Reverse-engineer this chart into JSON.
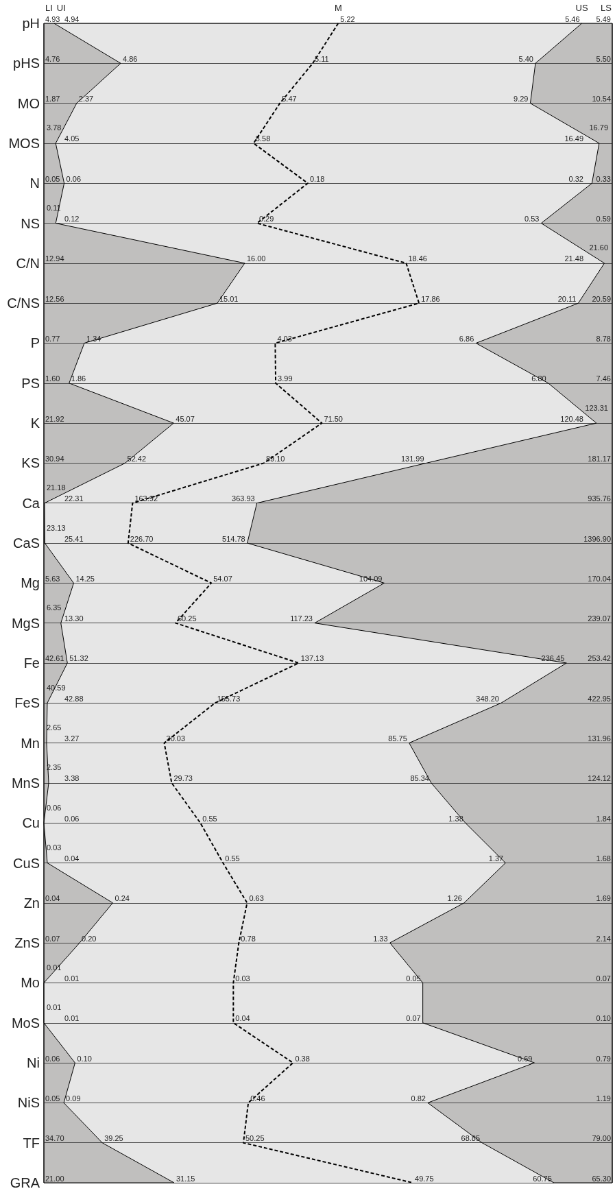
{
  "chart_data": {
    "type": "other",
    "categories": [
      "pH",
      "pHS",
      "MO",
      "MOS",
      "N",
      "NS",
      "C/N",
      "C/NS",
      "P",
      "PS",
      "K",
      "KS",
      "Ca",
      "CaS",
      "Mg",
      "MgS",
      "Fe",
      "FeS",
      "Mn",
      "MnS",
      "Cu",
      "CuS",
      "Zn",
      "ZnS",
      "Mo",
      "MoS",
      "Ni",
      "NiS",
      "TF",
      "GRA"
    ],
    "series": [
      {
        "name": "LI",
        "color": "#000000",
        "values": [
          4.93,
          4.76,
          1.87,
          3.78,
          0.05,
          0.11,
          12.94,
          12.56,
          0.77,
          1.6,
          21.92,
          30.94,
          21.18,
          23.13,
          5.63,
          6.35,
          42.61,
          40.59,
          2.65,
          2.35,
          0.06,
          0.03,
          0.04,
          0.07,
          0.01,
          0.01,
          0.06,
          0.05,
          34.7,
          21.0
        ],
        "value_labels": [
          "4.93",
          "4.76",
          "1.87",
          "3.78",
          "0.05",
          "0.11",
          "12.94",
          "12.56",
          "0.77",
          "1.60",
          "21.92",
          "30.94",
          "21.18",
          "23.13",
          "5.63",
          "6.35",
          "42.61",
          "40.59",
          "2.65",
          "2.35",
          "0.06",
          "0.03",
          "0.04",
          "0.07",
          "0.01",
          "0.01",
          "0.06",
          "0.05",
          "34.70",
          "21.00"
        ]
      },
      {
        "name": "UI",
        "color": "#000000",
        "values": [
          4.94,
          4.86,
          2.37,
          4.05,
          0.06,
          0.12,
          16.0,
          15.01,
          1.34,
          1.86,
          45.07,
          52.42,
          22.31,
          25.41,
          14.25,
          13.3,
          51.32,
          42.88,
          3.27,
          3.38,
          0.06,
          0.04,
          0.24,
          0.2,
          0.01,
          0.01,
          0.1,
          0.09,
          39.25,
          31.15
        ],
        "value_labels": [
          "4.94",
          "4.86",
          "2.37",
          "4.05",
          "0.06",
          "0.12",
          "16.00",
          "15.01",
          "1.34",
          "1.86",
          "45.07",
          "52.42",
          "22.31",
          "25.41",
          "14.25",
          "13.30",
          "51.32",
          "42.88",
          "3.27",
          "3.38",
          "0.06",
          "0.04",
          "0.24",
          "0.20",
          "0.01",
          "0.01",
          "0.10",
          "0.09",
          "39.25",
          "31.15"
        ]
      },
      {
        "name": "M",
        "color": "#000000",
        "values": [
          5.22,
          5.11,
          5.47,
          8.58,
          0.18,
          0.29,
          18.46,
          17.86,
          4.03,
          3.99,
          71.5,
          89.1,
          163.92,
          226.7,
          54.07,
          60.25,
          137.13,
          155.73,
          30.03,
          29.73,
          0.55,
          0.55,
          0.63,
          0.78,
          0.03,
          0.04,
          0.38,
          0.46,
          50.25,
          49.75
        ],
        "value_labels": [
          "5.22",
          "5.11",
          "5.47",
          "8.58",
          "0.18",
          "0.29",
          "18.46",
          "17.86",
          "4.03",
          "3.99",
          "71.50",
          "89.10",
          "163.92",
          "226.70",
          "54.07",
          "60.25",
          "137.13",
          "155.73",
          "30.03",
          "29.73",
          "0.55",
          "0.55",
          "0.63",
          "0.78",
          "0.03",
          "0.04",
          "0.38",
          "0.46",
          "50.25",
          "49.75"
        ]
      },
      {
        "name": "US",
        "color": "#000000",
        "values": [
          5.46,
          5.4,
          9.29,
          16.49,
          0.32,
          0.53,
          21.48,
          20.11,
          6.86,
          6.8,
          120.48,
          131.99,
          363.93,
          514.78,
          104.09,
          117.23,
          236.45,
          348.2,
          85.75,
          85.34,
          1.38,
          1.37,
          1.26,
          1.33,
          0.05,
          0.07,
          0.69,
          0.82,
          68.85,
          60.75
        ],
        "value_labels": [
          "5.46",
          "5.40",
          "9.29",
          "16.49",
          "0.32",
          "0.53",
          "21.48",
          "20.11",
          "6.86",
          "6.80",
          "120.48",
          "131.99",
          "363.93",
          "514.78",
          "104.09",
          "117.23",
          "236.45",
          "348.20",
          "85.75",
          "85.34",
          "1.38",
          "1.37",
          "1.26",
          "1.33",
          "0.05",
          "0.07",
          "0.69",
          "0.82",
          "68.85",
          "60.75"
        ]
      },
      {
        "name": "LS",
        "color": "#000000",
        "values": [
          5.49,
          5.5,
          10.54,
          16.79,
          0.33,
          0.59,
          21.6,
          20.59,
          8.78,
          7.46,
          123.31,
          181.17,
          935.76,
          1396.9,
          170.04,
          239.07,
          253.42,
          422.95,
          131.96,
          124.12,
          1.84,
          1.68,
          1.69,
          2.14,
          0.07,
          0.1,
          0.79,
          1.19,
          79.0,
          65.3
        ],
        "value_labels": [
          "5.49",
          "5.50",
          "10.54",
          "16.79",
          "0.33",
          "0.59",
          "21.60",
          "20.59",
          "8.78",
          "7.46",
          "123.31",
          "181.17",
          "935.76",
          "1396.90",
          "170.04",
          "239.07",
          "253.42",
          "422.95",
          "131.96",
          "124.12",
          "1.84",
          "1.68",
          "1.69",
          "2.14",
          "0.07",
          "0.10",
          "0.79",
          "1.19",
          "79.00",
          "65.30"
        ]
      }
    ]
  }
}
